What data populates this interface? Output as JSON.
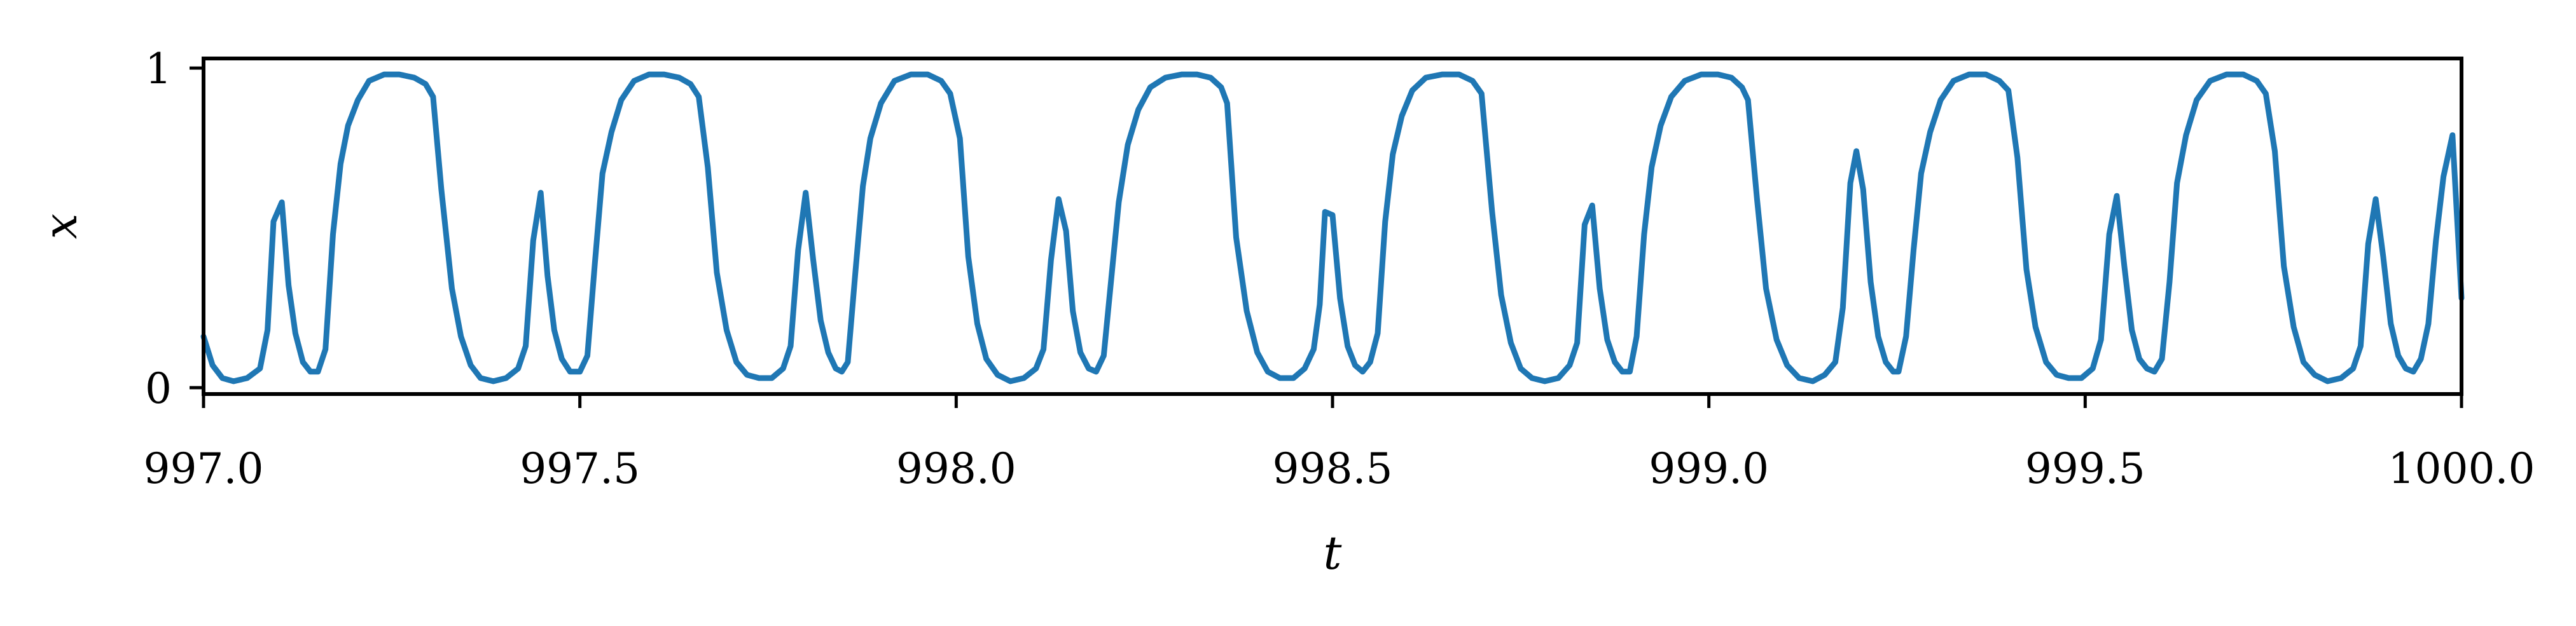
{
  "chart_data": {
    "type": "line",
    "title": "",
    "xlabel": "t",
    "ylabel": "x",
    "xlim": [
      997.0,
      1000.0
    ],
    "ylim": [
      -0.02,
      1.03
    ],
    "grid": false,
    "legend": "none",
    "x_ticks": [
      997.0,
      997.5,
      998.0,
      998.5,
      999.0,
      999.5,
      1000.0
    ],
    "x_tick_labels": [
      "997.0",
      "997.5",
      "998.0",
      "998.5",
      "999.0",
      "999.5",
      "1000.0"
    ],
    "y_ticks": [
      0,
      1
    ],
    "y_tick_labels": [
      "0",
      "1"
    ],
    "line_color": "#1f77b4",
    "series": [
      {
        "points": [
          [
            997.0,
            0.16
          ],
          [
            997.012,
            0.07
          ],
          [
            997.025,
            0.03
          ],
          [
            997.04,
            0.02
          ],
          [
            997.058,
            0.03
          ],
          [
            997.075,
            0.06
          ],
          [
            997.085,
            0.18
          ],
          [
            997.093,
            0.52
          ],
          [
            997.104,
            0.58
          ],
          [
            997.113,
            0.32
          ],
          [
            997.122,
            0.17
          ],
          [
            997.132,
            0.08
          ],
          [
            997.142,
            0.05
          ],
          [
            997.152,
            0.05
          ],
          [
            997.162,
            0.12
          ],
          [
            997.172,
            0.48
          ],
          [
            997.182,
            0.7
          ],
          [
            997.192,
            0.82
          ],
          [
            997.205,
            0.9
          ],
          [
            997.22,
            0.96
          ],
          [
            997.24,
            0.98
          ],
          [
            997.26,
            0.98
          ],
          [
            997.28,
            0.97
          ],
          [
            997.295,
            0.95
          ],
          [
            997.305,
            0.91
          ],
          [
            997.316,
            0.62
          ],
          [
            997.33,
            0.31
          ],
          [
            997.342,
            0.16
          ],
          [
            997.355,
            0.07
          ],
          [
            997.368,
            0.03
          ],
          [
            997.385,
            0.02
          ],
          [
            997.402,
            0.03
          ],
          [
            997.418,
            0.06
          ],
          [
            997.428,
            0.13
          ],
          [
            997.438,
            0.46
          ],
          [
            997.448,
            0.61
          ],
          [
            997.457,
            0.35
          ],
          [
            997.466,
            0.18
          ],
          [
            997.476,
            0.09
          ],
          [
            997.487,
            0.05
          ],
          [
            997.5,
            0.05
          ],
          [
            997.51,
            0.1
          ],
          [
            997.52,
            0.39
          ],
          [
            997.53,
            0.67
          ],
          [
            997.542,
            0.8
          ],
          [
            997.555,
            0.9
          ],
          [
            997.572,
            0.96
          ],
          [
            997.592,
            0.98
          ],
          [
            997.612,
            0.98
          ],
          [
            997.632,
            0.97
          ],
          [
            997.647,
            0.95
          ],
          [
            997.658,
            0.91
          ],
          [
            997.67,
            0.69
          ],
          [
            997.682,
            0.36
          ],
          [
            997.695,
            0.18
          ],
          [
            997.708,
            0.08
          ],
          [
            997.722,
            0.04
          ],
          [
            997.738,
            0.03
          ],
          [
            997.755,
            0.03
          ],
          [
            997.77,
            0.06
          ],
          [
            997.78,
            0.13
          ],
          [
            997.79,
            0.43
          ],
          [
            997.8,
            0.61
          ],
          [
            997.81,
            0.4
          ],
          [
            997.82,
            0.21
          ],
          [
            997.83,
            0.11
          ],
          [
            997.84,
            0.06
          ],
          [
            997.848,
            0.05
          ],
          [
            997.856,
            0.08
          ],
          [
            997.866,
            0.36
          ],
          [
            997.876,
            0.63
          ],
          [
            997.886,
            0.78
          ],
          [
            997.9,
            0.89
          ],
          [
            997.918,
            0.96
          ],
          [
            997.94,
            0.98
          ],
          [
            997.962,
            0.98
          ],
          [
            997.98,
            0.96
          ],
          [
            997.992,
            0.92
          ],
          [
            998.005,
            0.78
          ],
          [
            998.016,
            0.41
          ],
          [
            998.028,
            0.2
          ],
          [
            998.04,
            0.09
          ],
          [
            998.055,
            0.04
          ],
          [
            998.072,
            0.02
          ],
          [
            998.09,
            0.03
          ],
          [
            998.106,
            0.06
          ],
          [
            998.116,
            0.12
          ],
          [
            998.126,
            0.4
          ],
          [
            998.136,
            0.59
          ],
          [
            998.146,
            0.49
          ],
          [
            998.155,
            0.24
          ],
          [
            998.165,
            0.11
          ],
          [
            998.176,
            0.06
          ],
          [
            998.186,
            0.05
          ],
          [
            998.196,
            0.1
          ],
          [
            998.206,
            0.34
          ],
          [
            998.216,
            0.58
          ],
          [
            998.228,
            0.76
          ],
          [
            998.242,
            0.87
          ],
          [
            998.258,
            0.94
          ],
          [
            998.278,
            0.97
          ],
          [
            998.3,
            0.98
          ],
          [
            998.32,
            0.98
          ],
          [
            998.338,
            0.97
          ],
          [
            998.352,
            0.94
          ],
          [
            998.36,
            0.89
          ],
          [
            998.372,
            0.47
          ],
          [
            998.386,
            0.24
          ],
          [
            998.4,
            0.11
          ],
          [
            998.414,
            0.05
          ],
          [
            998.43,
            0.03
          ],
          [
            998.448,
            0.03
          ],
          [
            998.463,
            0.06
          ],
          [
            998.475,
            0.12
          ],
          [
            998.483,
            0.26
          ],
          [
            998.49,
            0.55
          ],
          [
            998.5,
            0.54
          ],
          [
            998.51,
            0.28
          ],
          [
            998.52,
            0.13
          ],
          [
            998.53,
            0.07
          ],
          [
            998.54,
            0.05
          ],
          [
            998.55,
            0.08
          ],
          [
            998.56,
            0.17
          ],
          [
            998.57,
            0.52
          ],
          [
            998.58,
            0.73
          ],
          [
            998.592,
            0.85
          ],
          [
            998.606,
            0.93
          ],
          [
            998.624,
            0.97
          ],
          [
            998.646,
            0.98
          ],
          [
            998.668,
            0.98
          ],
          [
            998.686,
            0.96
          ],
          [
            998.698,
            0.92
          ],
          [
            998.712,
            0.55
          ],
          [
            998.724,
            0.29
          ],
          [
            998.737,
            0.14
          ],
          [
            998.75,
            0.06
          ],
          [
            998.765,
            0.03
          ],
          [
            998.782,
            0.02
          ],
          [
            998.8,
            0.03
          ],
          [
            998.815,
            0.07
          ],
          [
            998.825,
            0.14
          ],
          [
            998.835,
            0.51
          ],
          [
            998.845,
            0.57
          ],
          [
            998.855,
            0.31
          ],
          [
            998.865,
            0.15
          ],
          [
            998.875,
            0.08
          ],
          [
            998.885,
            0.05
          ],
          [
            998.895,
            0.05
          ],
          [
            998.904,
            0.16
          ],
          [
            998.914,
            0.48
          ],
          [
            998.924,
            0.69
          ],
          [
            998.936,
            0.82
          ],
          [
            998.95,
            0.91
          ],
          [
            998.968,
            0.96
          ],
          [
            998.99,
            0.98
          ],
          [
            999.012,
            0.98
          ],
          [
            999.03,
            0.97
          ],
          [
            999.044,
            0.94
          ],
          [
            999.052,
            0.9
          ],
          [
            999.064,
            0.59
          ],
          [
            999.076,
            0.31
          ],
          [
            999.09,
            0.15
          ],
          [
            999.104,
            0.07
          ],
          [
            999.12,
            0.03
          ],
          [
            999.138,
            0.02
          ],
          [
            999.154,
            0.04
          ],
          [
            999.168,
            0.08
          ],
          [
            999.178,
            0.25
          ],
          [
            999.188,
            0.64
          ],
          [
            999.196,
            0.74
          ],
          [
            999.205,
            0.62
          ],
          [
            999.215,
            0.33
          ],
          [
            999.225,
            0.16
          ],
          [
            999.235,
            0.08
          ],
          [
            999.245,
            0.05
          ],
          [
            999.252,
            0.05
          ],
          [
            999.262,
            0.16
          ],
          [
            999.272,
            0.43
          ],
          [
            999.282,
            0.67
          ],
          [
            999.294,
            0.8
          ],
          [
            999.308,
            0.9
          ],
          [
            999.325,
            0.96
          ],
          [
            999.346,
            0.98
          ],
          [
            999.368,
            0.98
          ],
          [
            999.386,
            0.96
          ],
          [
            999.398,
            0.93
          ],
          [
            999.41,
            0.72
          ],
          [
            999.422,
            0.37
          ],
          [
            999.434,
            0.19
          ],
          [
            999.448,
            0.08
          ],
          [
            999.462,
            0.04
          ],
          [
            999.478,
            0.03
          ],
          [
            999.495,
            0.03
          ],
          [
            999.51,
            0.06
          ],
          [
            999.521,
            0.15
          ],
          [
            999.532,
            0.48
          ],
          [
            999.542,
            0.6
          ],
          [
            999.552,
            0.38
          ],
          [
            999.562,
            0.18
          ],
          [
            999.572,
            0.09
          ],
          [
            999.582,
            0.06
          ],
          [
            999.592,
            0.05
          ],
          [
            999.602,
            0.09
          ],
          [
            999.612,
            0.33
          ],
          [
            999.622,
            0.64
          ],
          [
            999.634,
            0.79
          ],
          [
            999.648,
            0.9
          ],
          [
            999.666,
            0.96
          ],
          [
            999.688,
            0.98
          ],
          [
            999.71,
            0.98
          ],
          [
            999.728,
            0.96
          ],
          [
            999.74,
            0.92
          ],
          [
            999.752,
            0.74
          ],
          [
            999.764,
            0.38
          ],
          [
            999.777,
            0.19
          ],
          [
            999.79,
            0.08
          ],
          [
            999.805,
            0.04
          ],
          [
            999.822,
            0.02
          ],
          [
            999.84,
            0.03
          ],
          [
            999.856,
            0.06
          ],
          [
            999.866,
            0.13
          ],
          [
            999.876,
            0.45
          ],
          [
            999.886,
            0.59
          ],
          [
            999.896,
            0.41
          ],
          [
            999.906,
            0.2
          ],
          [
            999.916,
            0.1
          ],
          [
            999.926,
            0.06
          ],
          [
            999.936,
            0.05
          ],
          [
            999.946,
            0.09
          ],
          [
            999.956,
            0.2
          ],
          [
            999.966,
            0.46
          ],
          [
            999.976,
            0.66
          ],
          [
            999.988,
            0.79
          ],
          [
            1000.0,
            0.28
          ]
        ]
      }
    ]
  }
}
